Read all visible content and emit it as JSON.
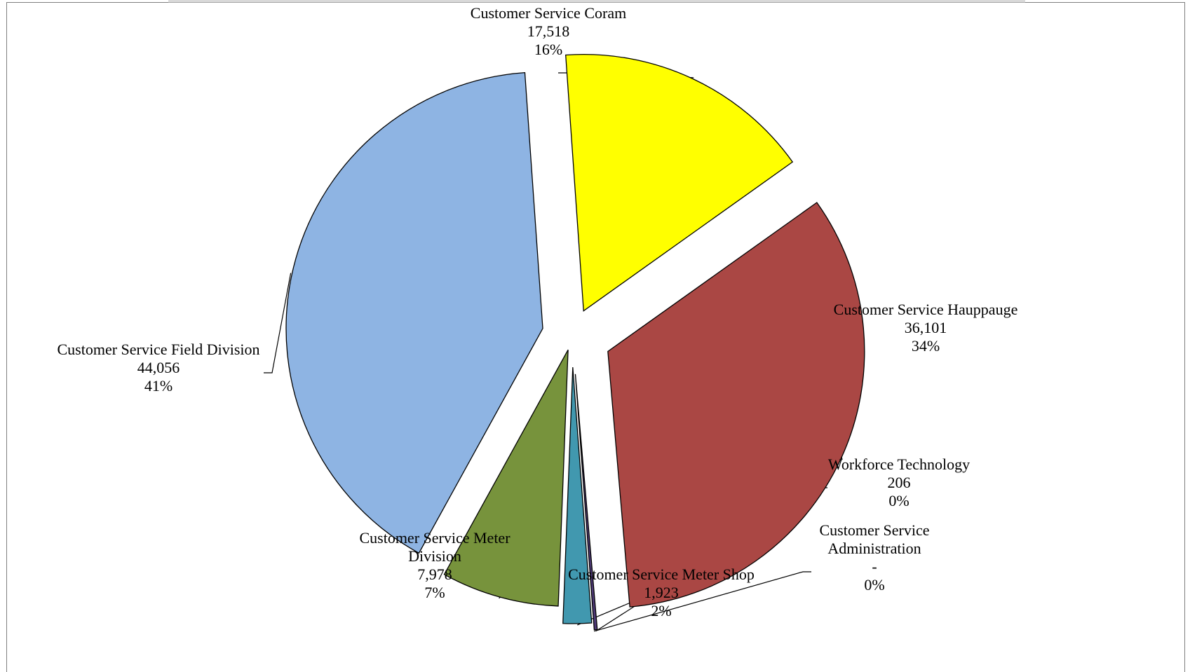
{
  "chart_data": {
    "type": "pie",
    "title": "",
    "slices": [
      {
        "name": "Customer Service Coram",
        "name_lines": [
          "Customer Service Coram"
        ],
        "value": 17518,
        "value_label": "17,518",
        "percent_label": "16%",
        "color": "#ffff00"
      },
      {
        "name": "Customer Service Hauppauge",
        "name_lines": [
          "Customer Service Hauppauge"
        ],
        "value": 36101,
        "value_label": "36,101",
        "percent_label": "34%",
        "color": "#aa4744"
      },
      {
        "name": "Workforce Technology",
        "name_lines": [
          "Workforce Technology"
        ],
        "value": 206,
        "value_label": "206",
        "percent_label": "0%",
        "color": "#4f3a78"
      },
      {
        "name": "Customer Service Administration",
        "name_lines": [
          "Customer Service",
          "Administration"
        ],
        "value": 0,
        "value_label": "-",
        "percent_label": "0%",
        "color": "#000000"
      },
      {
        "name": "Customer Service Meter Shop",
        "name_lines": [
          "Customer Service Meter Shop"
        ],
        "value": 1923,
        "value_label": "1,923",
        "percent_label": "2%",
        "color": "#4198af"
      },
      {
        "name": "Customer Service Meter Division",
        "name_lines": [
          "Customer Service Meter",
          "Division"
        ],
        "value": 7978,
        "value_label": "7,978",
        "percent_label": "7%",
        "color": "#77933c"
      },
      {
        "name": "Customer Service Field Division",
        "name_lines": [
          "Customer Service Field Division"
        ],
        "value": 44056,
        "value_label": "44,056",
        "percent_label": "41%",
        "color": "#8eb4e3"
      }
    ],
    "legend": "none",
    "data_labels": "outside with leader lines"
  }
}
